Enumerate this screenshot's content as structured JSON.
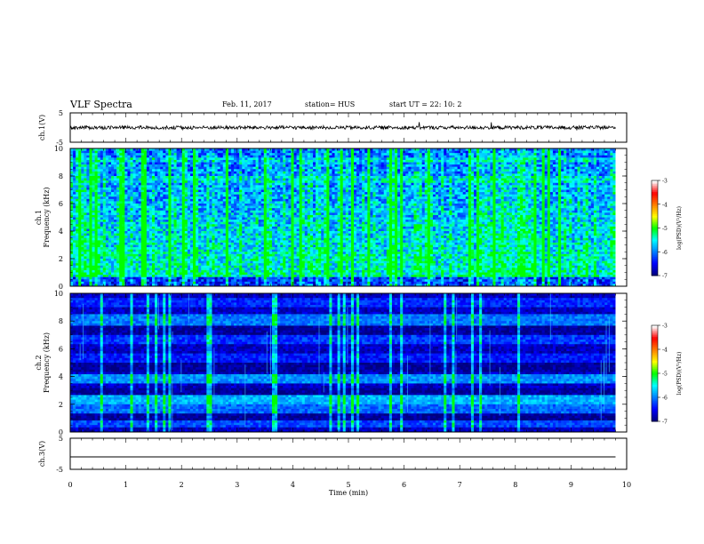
{
  "header": {
    "title": "VLF Spectra",
    "date": "Feb. 11, 2017",
    "station": "station= HUS",
    "start": "start  UT =   22: 10: 2"
  },
  "colors": {
    "spec_low": "#00007f",
    "spec_mid": "#00ff7f",
    "colormap": [
      "#00007f",
      "#0000ff",
      "#0080ff",
      "#00ffff",
      "#00ff00",
      "#ffff00",
      "#ff8000",
      "#ff0000",
      "#ffffff"
    ]
  },
  "chart_data": [
    {
      "type": "line",
      "name": "waveform-ch1",
      "ylabel": "ch.1(V)",
      "yticks": [
        "5",
        "-5"
      ],
      "ylim": [
        -5,
        5
      ],
      "xlim": [
        0,
        10
      ],
      "series": [
        {
          "x": [
            0,
            9.8
          ],
          "y": [
            0,
            0
          ]
        }
      ]
    },
    {
      "type": "heatmap",
      "name": "spectrogram-ch1",
      "ylabel": "ch.1\nFrequency (kHz)",
      "yticks": [
        "0",
        "2",
        "4",
        "6",
        "8",
        "10"
      ],
      "ylim": [
        0,
        10
      ],
      "xlim": [
        0,
        9.8
      ],
      "colorbar": {
        "label": "log(PSD)(V²/Hz)",
        "ticks": [
          "-3",
          "-4",
          "-5",
          "-6",
          "-7"
        ],
        "range": [
          -7,
          -3
        ]
      }
    },
    {
      "type": "heatmap",
      "name": "spectrogram-ch2",
      "ylabel": "ch.2\nFrequency (kHz)",
      "yticks": [
        "0",
        "2",
        "4",
        "6",
        "8",
        "10"
      ],
      "ylim": [
        0,
        10
      ],
      "xlim": [
        0,
        9.8
      ],
      "colorbar": {
        "label": "log(PSD)(V²/Hz)",
        "ticks": [
          "-3",
          "-4",
          "-5",
          "-6",
          "-7"
        ],
        "range": [
          -7,
          -3
        ]
      }
    },
    {
      "type": "line",
      "name": "waveform-ch3",
      "ylabel": "ch.3(V)",
      "yticks": [
        "5",
        "-5"
      ],
      "ylim": [
        -5,
        5
      ],
      "xlim": [
        0,
        10
      ],
      "series": [
        {
          "x": [
            0,
            9.8
          ],
          "y": [
            -1,
            -1
          ]
        }
      ]
    }
  ],
  "xaxis": {
    "label": "Time  (min)",
    "ticks": [
      "0",
      "1",
      "2",
      "3",
      "4",
      "5",
      "6",
      "7",
      "8",
      "9",
      "10"
    ]
  }
}
